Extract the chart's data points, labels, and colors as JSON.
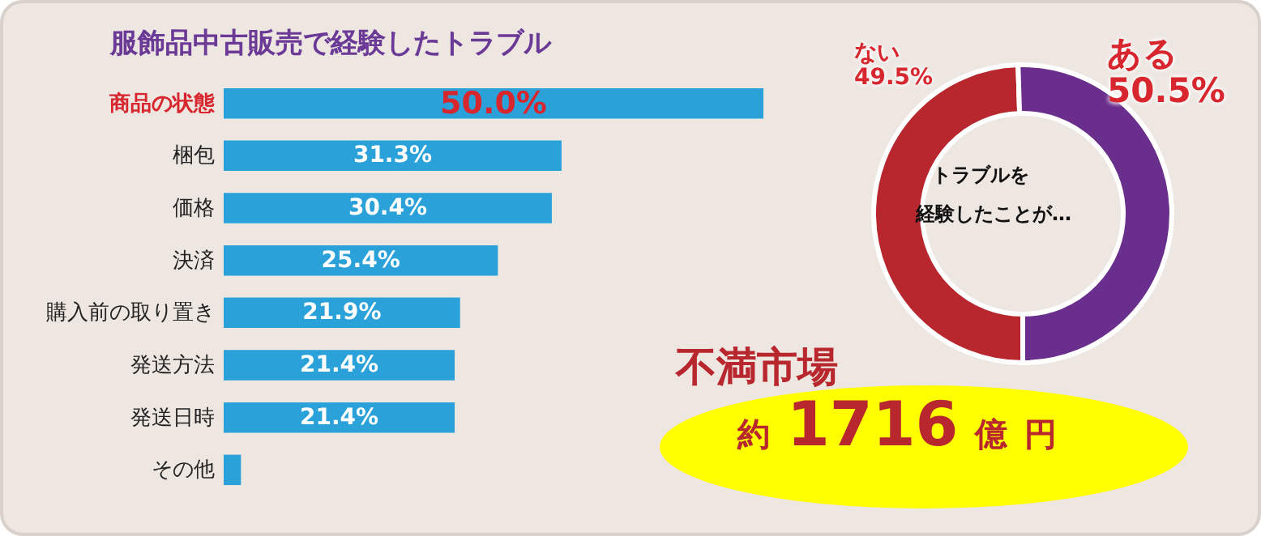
{
  "chart_data": [
    {
      "type": "bar",
      "orientation": "horizontal",
      "title": "服飾品中古販売で経験したトラブル",
      "categories": [
        "商品の状態",
        "梱包",
        "価格",
        "決済",
        "購入前の取り置き",
        "発送方法",
        "発送日時",
        "その他"
      ],
      "values": [
        50.0,
        31.3,
        30.4,
        25.4,
        21.9,
        21.4,
        21.4,
        1.6
      ],
      "value_labels": [
        "50.0%",
        "31.3%",
        "30.4%",
        "25.4%",
        "21.9%",
        "21.4%",
        "21.4%",
        null
      ],
      "color": "#2aa1d9",
      "xlim": [
        0,
        50
      ],
      "tick_labels": "y"
    },
    {
      "type": "donut",
      "categories": [
        "ない",
        "ある"
      ],
      "values": [
        49.5,
        50.5
      ],
      "colors": [
        "#b8262e",
        "#6a2e8c"
      ],
      "value_labels": [
        "49.5%",
        "50.5%"
      ],
      "annotations": [
        "トラブルを",
        "経験したことが…"
      ]
    },
    {
      "type": "other",
      "title": "不満市場",
      "annotations": [
        "約 1716 億 円"
      ]
    }
  ]
}
